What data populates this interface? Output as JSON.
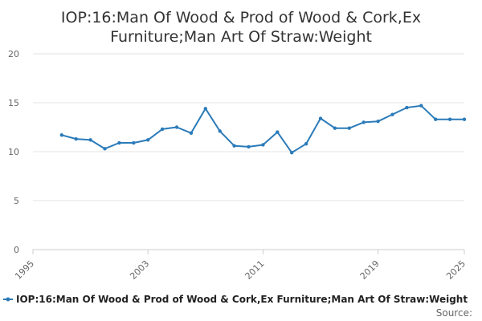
{
  "chart_data": {
    "type": "line",
    "title_lines": [
      "IOP:16:Man Of Wood & Prod of Wood & Cork,Ex",
      "Furniture;Man Art Of Straw:Weight"
    ],
    "xlabel": "",
    "ylabel": "",
    "xlim": [
      1995,
      2025
    ],
    "ylim": [
      0,
      20
    ],
    "xticks": [
      1995,
      2003,
      2011,
      2019,
      2025
    ],
    "yticks": [
      0,
      5,
      10,
      15,
      20
    ],
    "grid": "horizontal",
    "legend": "bottom",
    "line_color": "#2b7bb9",
    "series": [
      {
        "name": "IOP:16:Man Of Wood & Prod of Wood & Cork,Ex Furniture;Man Art Of Straw:Weight",
        "x": [
          1997,
          1998,
          1999,
          2000,
          2001,
          2002,
          2003,
          2004,
          2005,
          2006,
          2007,
          2008,
          2009,
          2010,
          2011,
          2012,
          2013,
          2014,
          2015,
          2016,
          2017,
          2018,
          2019,
          2020,
          2021,
          2022,
          2023,
          2024,
          2025
        ],
        "y": [
          11.7,
          11.3,
          11.2,
          10.3,
          10.9,
          10.9,
          11.2,
          12.3,
          12.5,
          11.9,
          14.4,
          12.1,
          10.6,
          10.5,
          10.7,
          12.0,
          9.9,
          10.8,
          13.4,
          12.4,
          12.4,
          13.0,
          13.1,
          13.8,
          14.5,
          14.7,
          13.3,
          13.3,
          13.3
        ]
      }
    ]
  },
  "footer": {
    "source_label": "Source:"
  }
}
